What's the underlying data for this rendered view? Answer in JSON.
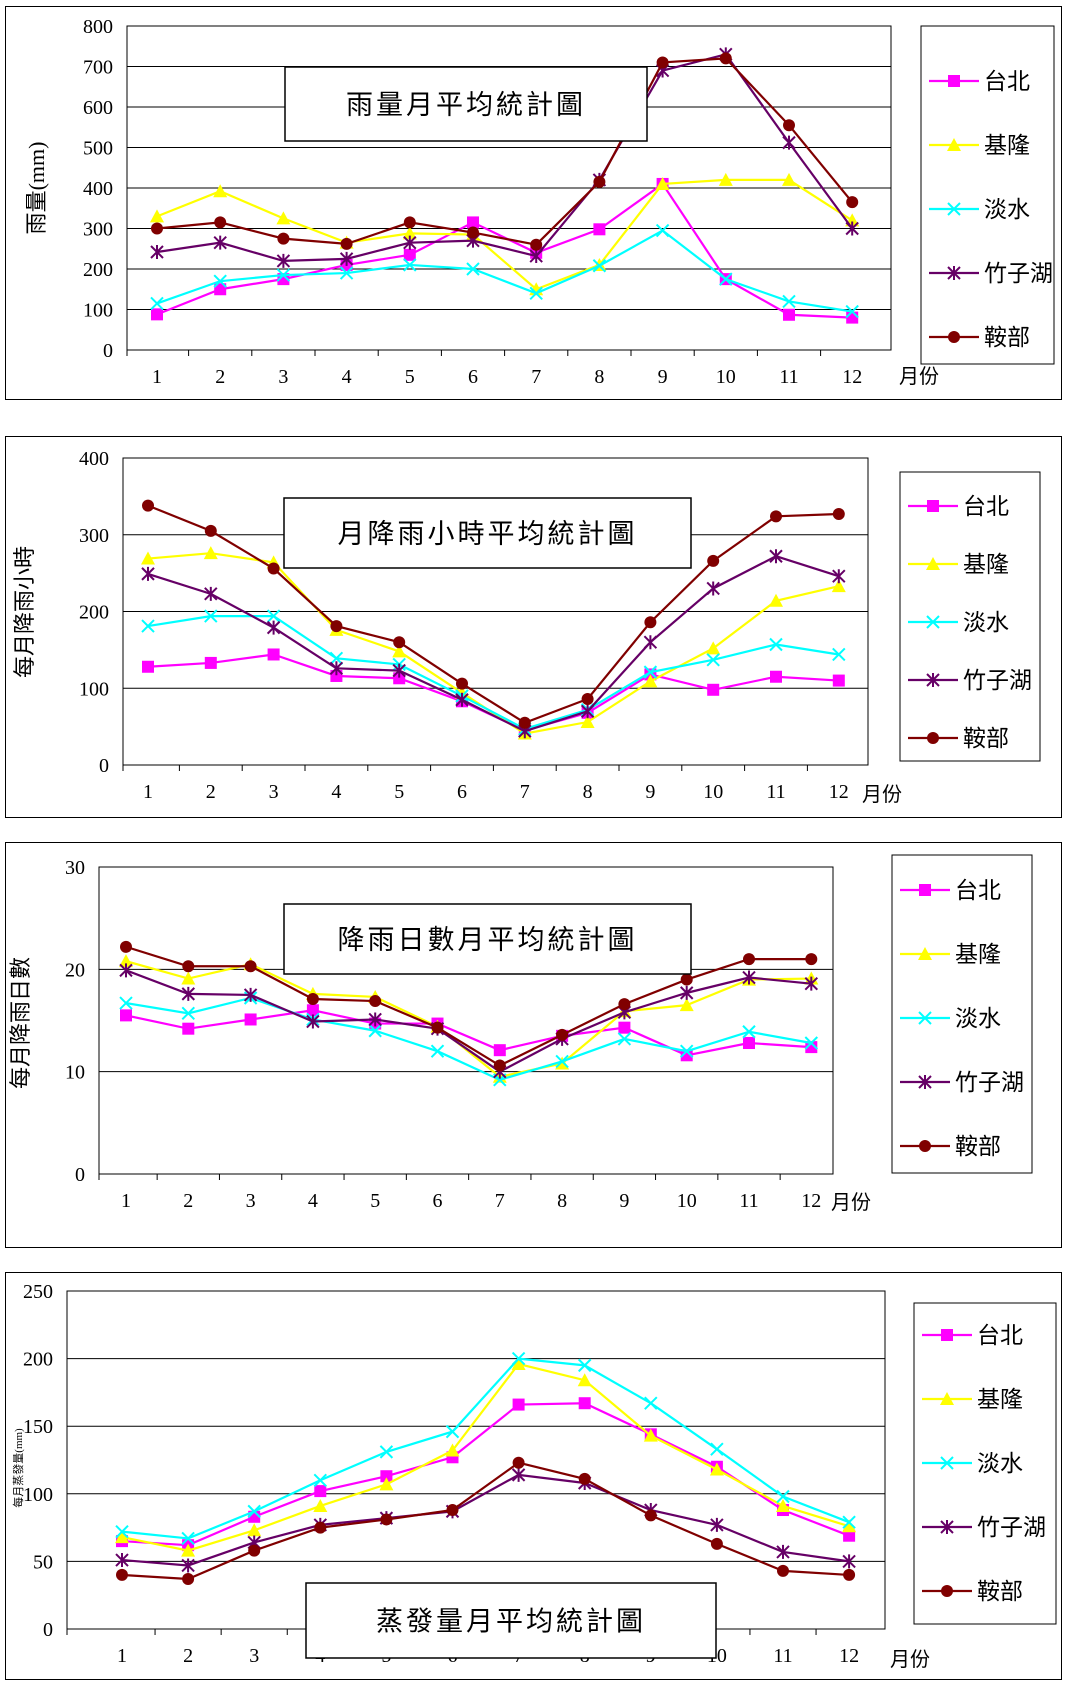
{
  "series_styles": [
    {
      "color": "#ff00ff",
      "marker": "square"
    },
    {
      "color": "#ffff00",
      "marker": "triangle"
    },
    {
      "color": "#00ffff",
      "marker": "x"
    },
    {
      "color": "#660066",
      "marker": "asterisk"
    },
    {
      "color": "#800000",
      "marker": "circle"
    }
  ],
  "x_unit_label": "月份",
  "chart_data": [
    {
      "type": "line",
      "title": "雨量月平均統計圖",
      "ylabel": "雨量(mm)",
      "xlabel": "月份",
      "ylim": [
        0,
        800
      ],
      "yticks": [
        0,
        100,
        200,
        300,
        400,
        500,
        600,
        700,
        800
      ],
      "grid": true,
      "legend": "right",
      "categories": [
        "1",
        "2",
        "3",
        "4",
        "5",
        "6",
        "7",
        "8",
        "9",
        "10",
        "11",
        "12"
      ],
      "series": [
        {
          "name": "台北",
          "values": [
            88,
            150,
            175,
            210,
            235,
            315,
            240,
            298,
            410,
            175,
            87,
            80
          ]
        },
        {
          "name": "基隆",
          "values": [
            330,
            392,
            325,
            265,
            288,
            285,
            150,
            210,
            410,
            420,
            420,
            320
          ]
        },
        {
          "name": "淡水",
          "values": [
            115,
            170,
            185,
            190,
            210,
            200,
            140,
            208,
            295,
            175,
            120,
            95
          ]
        },
        {
          "name": "竹子湖",
          "values": [
            242,
            265,
            220,
            225,
            265,
            270,
            232,
            420,
            690,
            730,
            512,
            300
          ]
        },
        {
          "name": "鞍部",
          "values": [
            300,
            315,
            275,
            262,
            315,
            290,
            260,
            415,
            710,
            720,
            555,
            365
          ]
        }
      ]
    },
    {
      "type": "line",
      "title": "月降雨小時平均統計圖",
      "ylabel": "每月降雨小時",
      "xlabel": "月份",
      "ylim": [
        0,
        400
      ],
      "yticks": [
        0,
        100,
        200,
        300,
        400
      ],
      "grid": true,
      "legend": "right",
      "categories": [
        "1",
        "2",
        "3",
        "4",
        "5",
        "6",
        "7",
        "8",
        "9",
        "10",
        "11",
        "12"
      ],
      "series": [
        {
          "name": "台北",
          "values": [
            128,
            133,
            144,
            116,
            113,
            83,
            45,
            68,
            118,
            98,
            115,
            110
          ]
        },
        {
          "name": "基隆",
          "values": [
            269,
            276,
            264,
            176,
            148,
            94,
            41,
            56,
            109,
            152,
            214,
            233
          ]
        },
        {
          "name": "淡水",
          "values": [
            181,
            194,
            194,
            139,
            131,
            90,
            47,
            72,
            121,
            137,
            157,
            144
          ]
        },
        {
          "name": "竹子湖",
          "values": [
            249,
            223,
            179,
            126,
            123,
            85,
            44,
            70,
            160,
            230,
            272,
            246
          ]
        },
        {
          "name": "鞍部",
          "values": [
            338,
            305,
            256,
            181,
            160,
            106,
            55,
            86,
            186,
            266,
            324,
            327
          ]
        }
      ]
    },
    {
      "type": "line",
      "title": "降雨日數月平均統計圖",
      "ylabel": "每月降雨日數",
      "xlabel": "月份",
      "ylim": [
        0,
        30
      ],
      "yticks": [
        0,
        10,
        20,
        30
      ],
      "grid": true,
      "legend": "right",
      "categories": [
        "1",
        "2",
        "3",
        "4",
        "5",
        "6",
        "7",
        "8",
        "9",
        "10",
        "11",
        "12"
      ],
      "series": [
        {
          "name": "台北",
          "values": [
            15.5,
            14.2,
            15.1,
            16.0,
            14.7,
            14.7,
            12.1,
            13.5,
            14.3,
            11.6,
            12.8,
            12.4
          ]
        },
        {
          "name": "基隆",
          "values": [
            20.8,
            19.1,
            20.5,
            17.6,
            17.3,
            14.4,
            9.5,
            10.8,
            15.9,
            16.5,
            19.0,
            19.1
          ]
        },
        {
          "name": "淡水",
          "values": [
            16.7,
            15.7,
            17.2,
            15.1,
            14.0,
            12.0,
            9.2,
            11.0,
            13.2,
            12.0,
            13.9,
            12.8
          ]
        },
        {
          "name": "竹子湖",
          "values": [
            19.9,
            17.6,
            17.5,
            14.9,
            15.1,
            14.2,
            10.0,
            13.2,
            15.8,
            17.7,
            19.2,
            18.6
          ]
        },
        {
          "name": "鞍部",
          "values": [
            22.2,
            20.3,
            20.3,
            17.1,
            16.9,
            14.3,
            10.6,
            13.6,
            16.6,
            19.0,
            21.0,
            21.0
          ]
        }
      ]
    },
    {
      "type": "line",
      "title": "蒸發量月平均統計圖",
      "ylabel": "每月蒸發量(mm)",
      "xlabel": "月份",
      "ylim": [
        0,
        250
      ],
      "yticks": [
        0,
        50,
        100,
        150,
        200,
        250
      ],
      "grid": true,
      "legend": "right",
      "categories": [
        "1",
        "2",
        "3",
        "4",
        "5",
        "6",
        "7",
        "8",
        "9",
        "10",
        "11",
        "12"
      ],
      "series": [
        {
          "name": "台北",
          "values": [
            65,
            62,
            83,
            102,
            113,
            127,
            166,
            167,
            144,
            120,
            88,
            69
          ]
        },
        {
          "name": "基隆",
          "values": [
            68,
            58,
            73,
            91,
            107,
            132,
            196,
            184,
            143,
            118,
            91,
            76
          ]
        },
        {
          "name": "淡水",
          "values": [
            72,
            67,
            87,
            110,
            131,
            146,
            200,
            195,
            167,
            133,
            98,
            79
          ]
        },
        {
          "name": "竹子湖",
          "values": [
            51,
            47,
            64,
            77,
            82,
            87,
            114,
            108,
            88,
            77,
            57,
            50
          ]
        },
        {
          "name": "鞍部",
          "values": [
            40,
            37,
            58,
            75,
            81,
            88,
            123,
            111,
            84,
            63,
            43,
            40
          ]
        }
      ]
    }
  ]
}
